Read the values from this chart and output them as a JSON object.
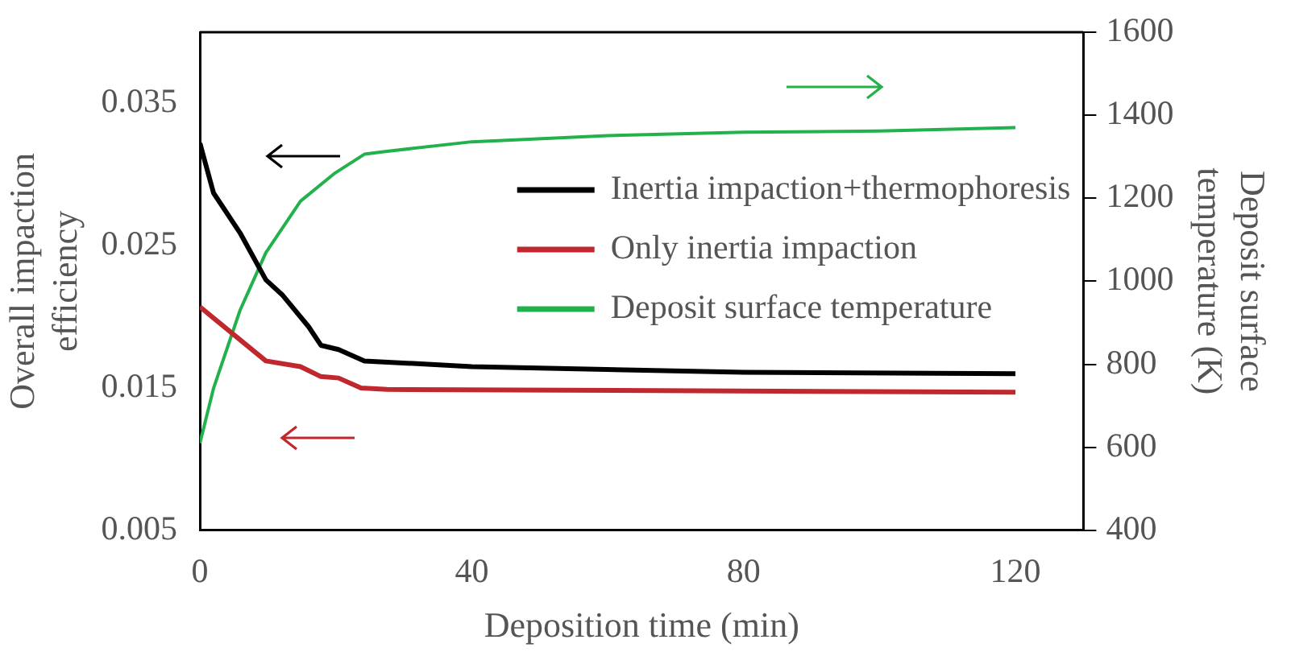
{
  "chart_data": {
    "type": "line",
    "xlabel": "Deposition time (min)",
    "ylabel": "Overall impaction\nefficiency",
    "y2label": "Deposit surface\ntemperature (K)",
    "xlim": [
      0,
      130
    ],
    "xticks": [
      0,
      40,
      80,
      120
    ],
    "ylim": [
      0.005,
      0.04
    ],
    "yticks": [
      0.005,
      0.015,
      0.025,
      0.035
    ],
    "y2lim": [
      400,
      1600
    ],
    "y2ticks": [
      400,
      600,
      800,
      1000,
      1200,
      1400,
      1600
    ],
    "grid": false,
    "legend": "top right",
    "marker": "none",
    "line_style": "solid",
    "series": [
      {
        "name": "Inertia impaction+thermophoresis",
        "color": "#000000",
        "x": [
          0,
          2,
          5.9,
          9.7,
          12.2,
          16,
          17.8,
          20.4,
          24.2,
          40,
          80,
          120
        ],
        "values": [
          0.0322,
          0.0287,
          0.0259,
          0.0226,
          0.0215,
          0.0193,
          0.018,
          0.0177,
          0.0169,
          0.0165,
          0.0161,
          0.016
        ]
      },
      {
        "name": "Only inertia impaction",
        "color": "#c0282d",
        "x": [
          0,
          9.7,
          14.8,
          17.8,
          20.4,
          23.7,
          27.5,
          120
        ],
        "values": [
          0.0207,
          0.0169,
          0.0165,
          0.0158,
          0.0157,
          0.015,
          0.0149,
          0.0147
        ]
      },
      {
        "name": "Deposit surface temperature",
        "color": "#22b14c",
        "axis": "y2",
        "x": [
          0,
          2,
          5.9,
          9.7,
          14.8,
          19.9,
          24.2,
          27.5,
          40,
          60,
          80,
          100,
          120
        ],
        "values": [
          610,
          742,
          930,
          1069,
          1193,
          1261,
          1306,
          1313,
          1336,
          1351,
          1359,
          1362,
          1370
        ]
      }
    ]
  }
}
